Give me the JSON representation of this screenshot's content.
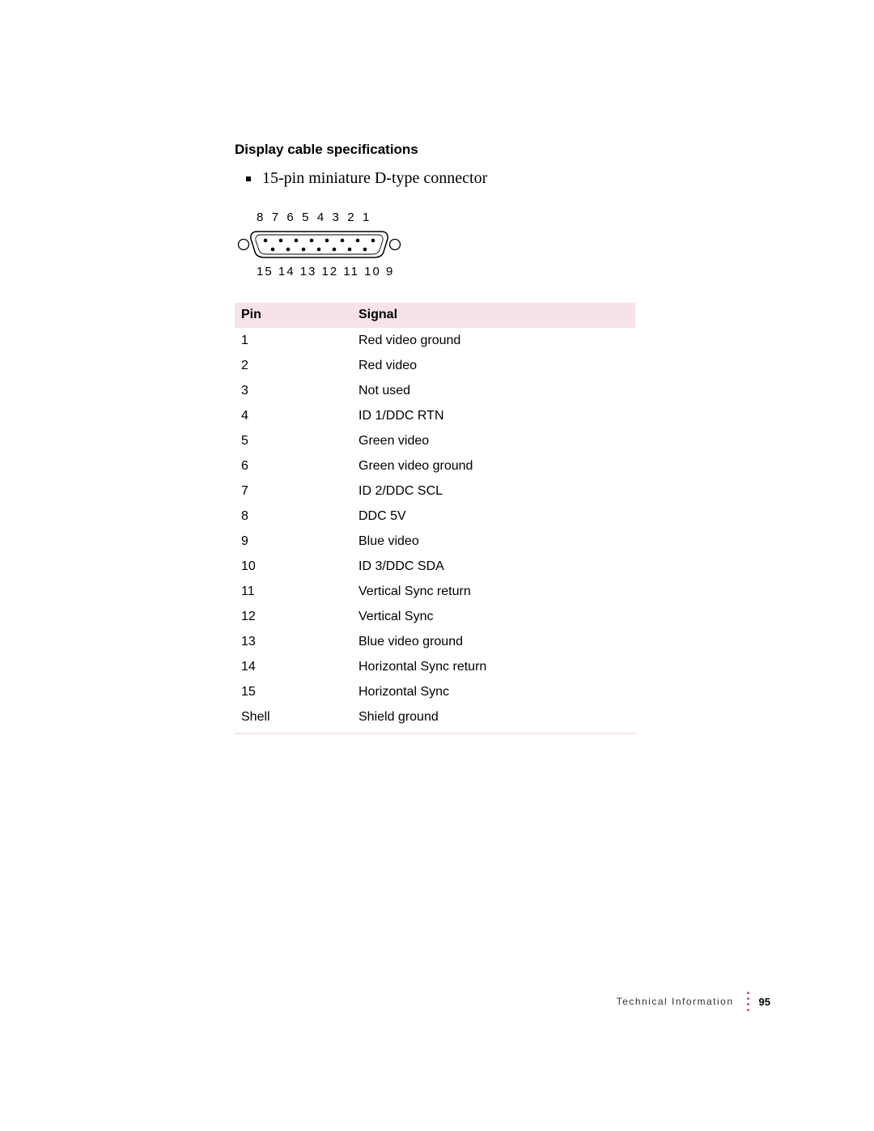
{
  "heading": "Display cable specifications",
  "bullet": "15-pin miniature D-type connector",
  "connector": {
    "top_labels": "8  7  6  5  4  3  2  1",
    "bottom_labels": "15  14  13  12  11  10  9",
    "outline_stroke": "#000000",
    "pin_fill": "#000000",
    "screw_stroke": "#000000"
  },
  "table": {
    "header_bg": "#f7e2e9",
    "columns": [
      "Pin",
      "Signal"
    ],
    "rows": [
      [
        "1",
        "Red video ground"
      ],
      [
        "2",
        "Red video"
      ],
      [
        "3",
        "Not used"
      ],
      [
        "4",
        "ID 1/DDC RTN"
      ],
      [
        "5",
        "Green video"
      ],
      [
        "6",
        "Green video ground"
      ],
      [
        "7",
        "ID 2/DDC SCL"
      ],
      [
        "8",
        "DDC 5V"
      ],
      [
        "9",
        "Blue video"
      ],
      [
        "10",
        "ID 3/DDC SDA"
      ],
      [
        "11",
        "Vertical Sync return"
      ],
      [
        "12",
        "Vertical Sync"
      ],
      [
        "13",
        "Blue video ground"
      ],
      [
        "14",
        "Horizontal Sync return"
      ],
      [
        "15",
        "Horizontal Sync"
      ],
      [
        "Shell",
        "Shield ground"
      ]
    ]
  },
  "footer": {
    "label": "Technical Information",
    "page": "95",
    "dot_color": "#c9506f"
  }
}
